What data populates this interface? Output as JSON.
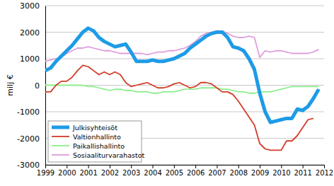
{
  "chart_data": {
    "type": "line",
    "y_label": "milj €",
    "x": [
      1999,
      1999.25,
      1999.5,
      1999.75,
      2000,
      2000.25,
      2000.5,
      2000.75,
      2001,
      2001.25,
      2001.5,
      2001.75,
      2002,
      2002.25,
      2002.5,
      2002.75,
      2003,
      2003.25,
      2003.5,
      2003.75,
      2004,
      2004.25,
      2004.5,
      2004.75,
      2005,
      2005.25,
      2005.5,
      2005.75,
      2006,
      2006.25,
      2006.5,
      2006.75,
      2007,
      2007.25,
      2007.5,
      2007.75,
      2008,
      2008.25,
      2008.5,
      2008.75,
      2009,
      2009.25,
      2009.5,
      2009.75,
      2010,
      2010.25,
      2010.5,
      2010.75,
      2011,
      2011.25,
      2011.5,
      2011.75
    ],
    "series": [
      {
        "name": "Julkisyhteisöt",
        "color": "#1e9be6",
        "values": [
          550,
          650,
          900,
          1100,
          1300,
          1500,
          1750,
          2000,
          2150,
          2050,
          1800,
          1650,
          1550,
          1450,
          1500,
          1550,
          1250,
          900,
          900,
          900,
          950,
          900,
          900,
          950,
          1000,
          1100,
          1200,
          1400,
          1550,
          1700,
          1850,
          1950,
          2000,
          2000,
          1800,
          1450,
          1400,
          1300,
          1000,
          600,
          -300,
          -1000,
          -1400,
          -1350,
          -1300,
          -1250,
          -1250,
          -900,
          -950,
          -800,
          -500,
          -150
        ]
      },
      {
        "name": "Valtionhallinto",
        "color": "#d23c28",
        "values": [
          -250,
          -250,
          0,
          150,
          150,
          300,
          550,
          750,
          700,
          550,
          400,
          500,
          400,
          500,
          400,
          100,
          -50,
          0,
          50,
          100,
          0,
          -100,
          -100,
          -50,
          50,
          100,
          0,
          -100,
          -50,
          100,
          100,
          50,
          -100,
          -250,
          -250,
          -350,
          -600,
          -900,
          -1200,
          -1500,
          -2200,
          -2400,
          -2450,
          -2450,
          -2450,
          -2100,
          -2100,
          -1900,
          -1600,
          -1300,
          -1250,
          null
        ]
      },
      {
        "name": "Paikallishallinto",
        "color": "#8cee8c",
        "values": [
          0,
          0,
          0,
          0,
          0,
          0,
          0,
          0,
          -50,
          -50,
          -100,
          -150,
          -200,
          -150,
          -150,
          -200,
          -200,
          -250,
          -250,
          -250,
          -300,
          -300,
          -250,
          -250,
          -250,
          -200,
          -150,
          -150,
          -150,
          -100,
          -100,
          -100,
          -100,
          -150,
          -150,
          -200,
          -250,
          -250,
          -300,
          -300,
          -250,
          -250,
          -250,
          -200,
          -150,
          -100,
          -50,
          -50,
          -50,
          -50,
          -50,
          -50
        ]
      },
      {
        "name": "Sosiaaliturvarahastot",
        "color": "#dc9edc",
        "values": [
          900,
          950,
          1000,
          1050,
          1200,
          1300,
          1400,
          1400,
          1450,
          1400,
          1350,
          1300,
          1300,
          1250,
          1200,
          1200,
          1200,
          1200,
          1200,
          1150,
          1200,
          1250,
          1250,
          1300,
          1300,
          1350,
          1400,
          1500,
          1650,
          1850,
          1950,
          2000,
          2050,
          2050,
          1950,
          1850,
          1800,
          1800,
          1850,
          1800,
          1050,
          1300,
          1250,
          1300,
          1300,
          1250,
          1200,
          1200,
          1200,
          1200,
          1250,
          1350
        ]
      }
    ],
    "xlim": [
      1999,
      2012
    ],
    "xticks": [
      1999,
      2000,
      2001,
      2002,
      2003,
      2004,
      2005,
      2006,
      2007,
      2008,
      2009,
      2010,
      2011,
      2012
    ],
    "ylim": [
      -3000,
      3000
    ],
    "yticks": [
      -3000,
      -2000,
      -1000,
      0,
      1000,
      2000,
      3000
    ],
    "grid": true,
    "legend": "lower left"
  }
}
